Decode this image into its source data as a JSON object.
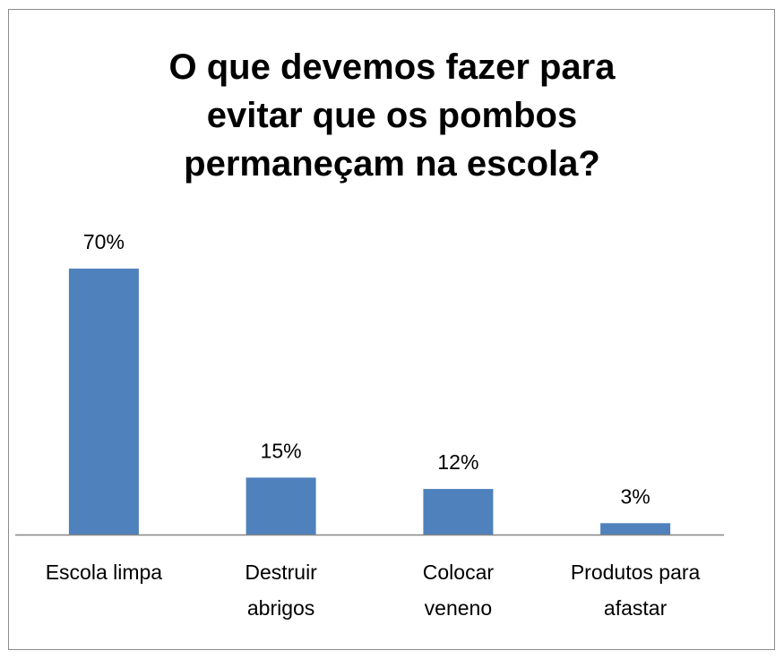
{
  "chart_data": {
    "type": "bar",
    "title": "O que devemos fazer para evitar que os pombos permaneçam na escola?",
    "title_lines": [
      "O que devemos fazer para",
      "evitar que os pombos",
      "permaneçam na escola?"
    ],
    "categories": [
      "Escola limpa",
      "Destruir abrigos",
      "Colocar veneno",
      "Produtos para afastar"
    ],
    "category_lines": [
      [
        "Escola limpa"
      ],
      [
        "Destruir",
        "abrigos"
      ],
      [
        "Colocar",
        "veneno"
      ],
      [
        "Produtos para",
        "afastar"
      ]
    ],
    "values": [
      70,
      15,
      12,
      3
    ],
    "data_labels": [
      "70%",
      "15%",
      "12%",
      "3%"
    ],
    "ylim": [
      0,
      70
    ],
    "grid": false,
    "legend": "none",
    "bar_color": "#4f81bd",
    "axis_color": "#868686"
  }
}
